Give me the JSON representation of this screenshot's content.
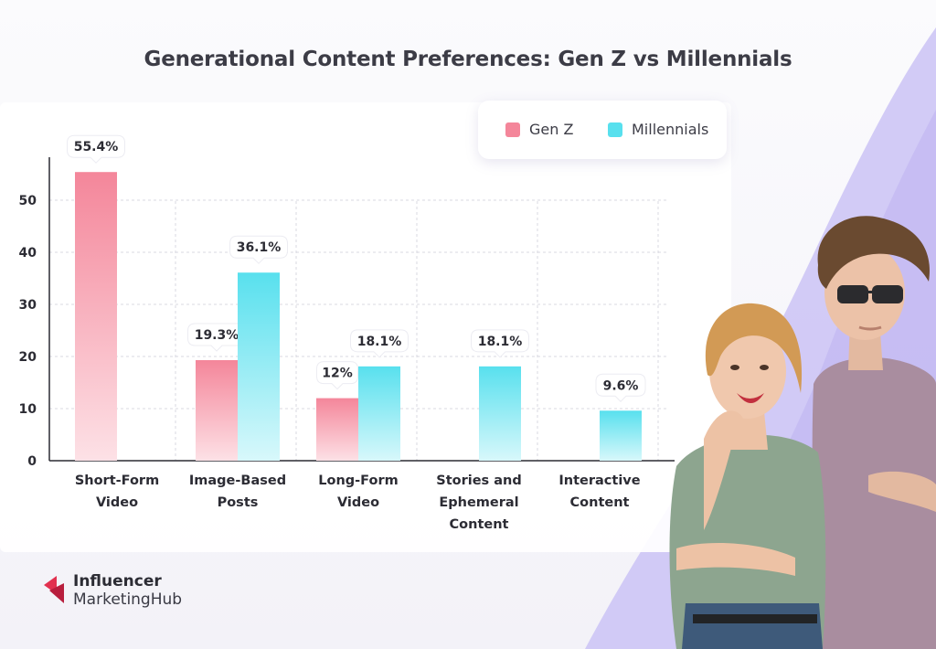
{
  "title": "Generational Content Preferences: Gen Z vs Millennials",
  "colors": {
    "genz": "#f4869a",
    "millennials": "#58e0ee",
    "accent_purple": "#c9c0f3",
    "brand_red": "#e2314f"
  },
  "legend": {
    "items": [
      {
        "label": "Gen Z"
      },
      {
        "label": "Millennials"
      }
    ]
  },
  "chart_data": {
    "type": "bar",
    "title": "Generational Content Preferences: Gen Z vs Millennials",
    "categories": [
      [
        "Short-Form",
        "Video"
      ],
      [
        "Image-Based",
        "Posts"
      ],
      [
        "Long-Form",
        "Video"
      ],
      [
        "Stories and",
        "Ephemeral",
        "Content"
      ],
      [
        "Interactive",
        "Content"
      ]
    ],
    "series": [
      {
        "name": "Gen Z",
        "values": [
          55.4,
          19.3,
          12,
          null,
          null
        ],
        "labels": [
          "55.4%",
          "19.3%",
          "12%",
          "",
          ""
        ]
      },
      {
        "name": "Millennials",
        "values": [
          null,
          36.1,
          18.1,
          18.1,
          9.6
        ],
        "labels": [
          "",
          "36.1%",
          "18.1%",
          "18.1%",
          "9.6%"
        ]
      }
    ],
    "yticks": [
      "0",
      "10",
      "20",
      "30",
      "40",
      "50"
    ],
    "ylim": [
      0,
      60
    ],
    "xlabel": "",
    "ylabel": "",
    "grid": true,
    "legend_position": "top-right"
  },
  "brand": {
    "line1": "Influencer",
    "line2": "MarketingHub"
  }
}
